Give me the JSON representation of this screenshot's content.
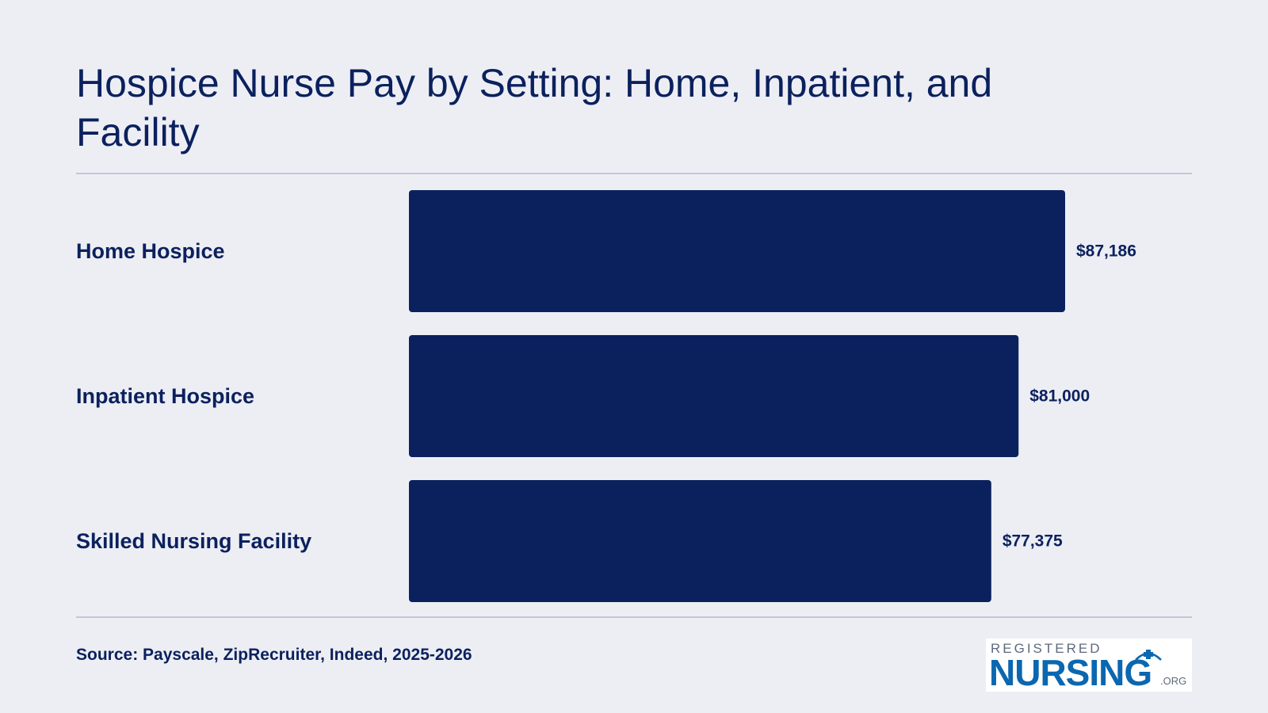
{
  "title": "Hospice Nurse Pay by Setting: Home, Inpatient, and Facility",
  "source": "Source: Payscale, ZipRecruiter, Indeed, 2025-2026",
  "logo": {
    "top_text": "REGISTERED",
    "main_text": "NURSING",
    "suffix": ".ORG",
    "icon": "nurse-cap-cross-icon"
  },
  "colors": {
    "background": "#edeef4",
    "bar": "#0b215e",
    "text": "#0b215e",
    "rule": "#c3c6d6",
    "logo_blue": "#0a67b0"
  },
  "chart_data": {
    "type": "bar",
    "orientation": "horizontal",
    "categories": [
      "Home Hospice",
      "Inpatient Hospice",
      "Skilled Nursing Facility"
    ],
    "values": [
      87186,
      81000,
      77375
    ],
    "value_labels": [
      "$87,186",
      "$81,000",
      "$77,375"
    ],
    "title": "Hospice Nurse Pay by Setting: Home, Inpatient, and Facility",
    "xlabel": "",
    "ylabel": "",
    "grid": false,
    "legend": "none"
  }
}
